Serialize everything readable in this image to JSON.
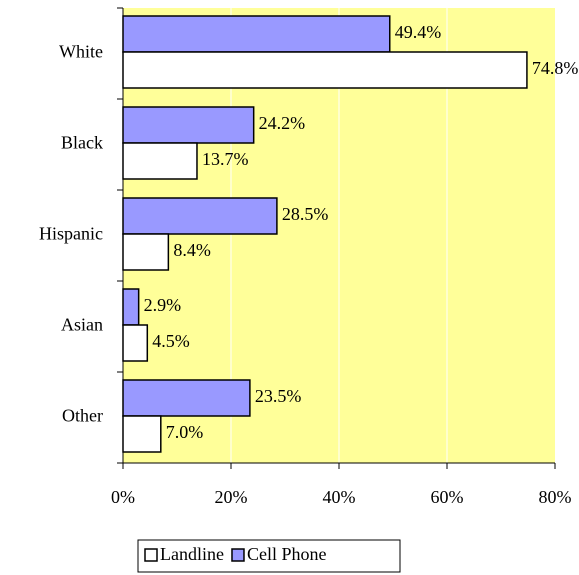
{
  "chart_data": {
    "type": "hbar",
    "categories": [
      "White",
      "Black",
      "Hispanic",
      "Asian",
      "Other"
    ],
    "series": [
      {
        "name": "Landline",
        "color": "#ffffff",
        "values": [
          74.8,
          13.7,
          8.4,
          4.5,
          7.0
        ],
        "value_labels": [
          "74.8%",
          "13.7%",
          "8.4%",
          "4.5%",
          "7.0%"
        ]
      },
      {
        "name": "Cell Phone",
        "color": "#9999ff",
        "values": [
          49.4,
          24.2,
          28.5,
          2.9,
          23.5
        ],
        "value_labels": [
          "49.4%",
          "24.2%",
          "28.5%",
          "2.9%",
          "23.5%"
        ]
      }
    ],
    "xlim": [
      0,
      80
    ],
    "xticks": [
      {
        "value": 0,
        "label": "0%"
      },
      {
        "value": 20,
        "label": "20%"
      },
      {
        "value": 40,
        "label": "40%"
      },
      {
        "value": 60,
        "label": "60%"
      },
      {
        "value": 80,
        "label": "80%"
      }
    ],
    "grid": true,
    "plot_background": "#ffff99",
    "legend": "bottom"
  }
}
